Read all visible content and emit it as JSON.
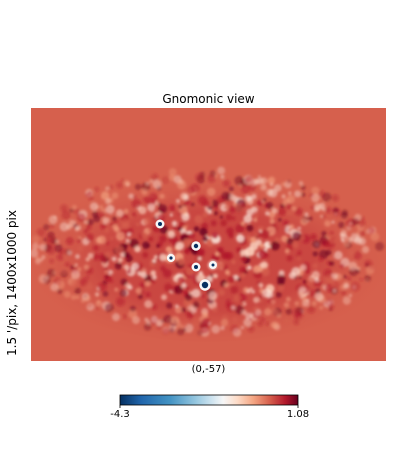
{
  "chart_data": {
    "type": "heatmap",
    "projection": "gnomonic",
    "title": "Gnomonic view",
    "ylabel": "1.5 '/pix,   1400x1000 pix",
    "center_label": "(0,-57)",
    "colormap": "RdBu_r",
    "colorbar": {
      "min_label": "-4.3",
      "max_label": "1.08",
      "min": -4.3,
      "max": 1.08
    },
    "background_value_color": "#d6604d",
    "grid": false
  }
}
